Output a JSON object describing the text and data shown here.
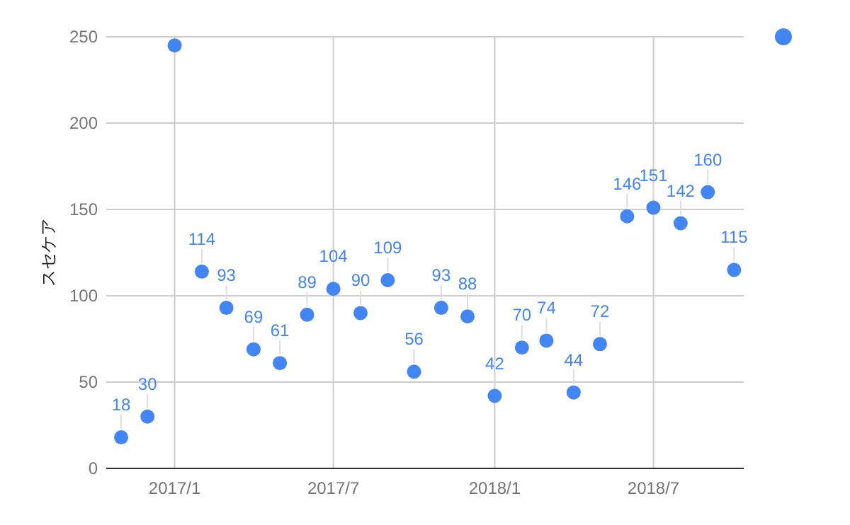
{
  "chart_data": {
    "type": "scatter",
    "ylabel": "スセケア",
    "x": [
      "2016-11",
      "2016-12",
      "2017-01",
      "2017-02",
      "2017-03",
      "2017-04",
      "2017-05",
      "2017-06",
      "2017-07",
      "2017-08",
      "2017-09",
      "2017-10",
      "2017-11",
      "2017-12",
      "2018-01",
      "2018-02",
      "2018-03",
      "2018-04",
      "2018-05",
      "2018-06",
      "2018-07",
      "2018-08",
      "2018-09",
      "2018-10"
    ],
    "series": [
      {
        "color": "#4285f4",
        "values": [
          18,
          30,
          245,
          114,
          93,
          69,
          61,
          89,
          104,
          90,
          109,
          56,
          93,
          88,
          42,
          70,
          74,
          44,
          72,
          146,
          151,
          142,
          160,
          115
        ],
        "value_labels": [
          "18",
          "30",
          null,
          "114",
          "93",
          "69",
          "61",
          "89",
          "104",
          "90",
          "109",
          "56",
          "93",
          "88",
          "42",
          "70",
          "74",
          "44",
          "72",
          "146",
          "151",
          "142",
          "160",
          "115"
        ]
      }
    ],
    "xlim": [
      "2016-10-15",
      "2018-10-12"
    ],
    "xticks": [
      {
        "value": "2017-01",
        "label": "2017/1"
      },
      {
        "value": "2017-07",
        "label": "2017/7"
      },
      {
        "value": "2018-01",
        "label": "2018/1"
      },
      {
        "value": "2018-07",
        "label": "2018/7"
      }
    ],
    "ylim": [
      0,
      250
    ],
    "yticks": [
      0,
      50,
      100,
      150,
      200,
      250
    ],
    "grid": true,
    "marker": "circle"
  }
}
